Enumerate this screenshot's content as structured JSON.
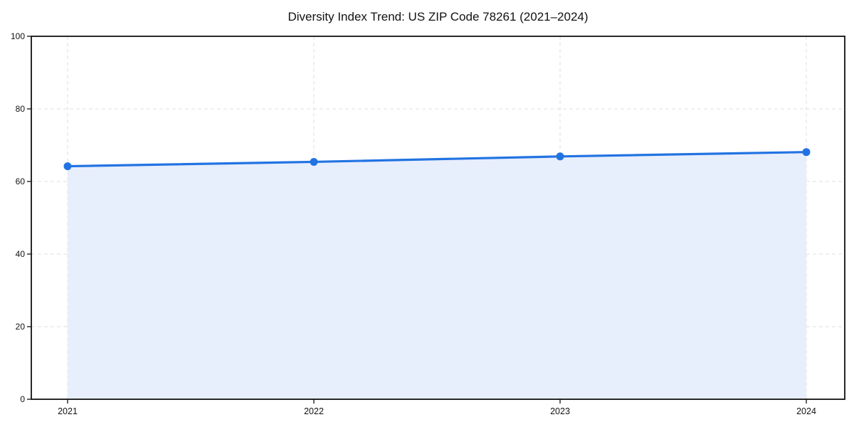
{
  "title": "Diversity Index Trend: US ZIP Code 78261 (2021–2024)",
  "chart_data": {
    "type": "area",
    "title": "Diversity Index Trend: US ZIP Code 78261 (2021–2024)",
    "categories": [
      "2021",
      "2022",
      "2023",
      "2024"
    ],
    "series": [
      {
        "name": "Diversity Index",
        "values": [
          64.2,
          65.4,
          66.9,
          68.1
        ]
      }
    ],
    "xlabel": "",
    "ylabel": "",
    "ylim": [
      0,
      100
    ],
    "yticks": [
      0,
      20,
      40,
      60,
      80,
      100
    ],
    "grid": true,
    "grid_style": "dashed",
    "legend_position": "none",
    "colors": {
      "line": "#2273e2",
      "marker": "#2273e2",
      "fill": "#e7eefc",
      "grid": "#dfdfdf",
      "spine": "#111111",
      "tick": "#111111",
      "text": "#111111",
      "background": "#ffffff"
    }
  }
}
